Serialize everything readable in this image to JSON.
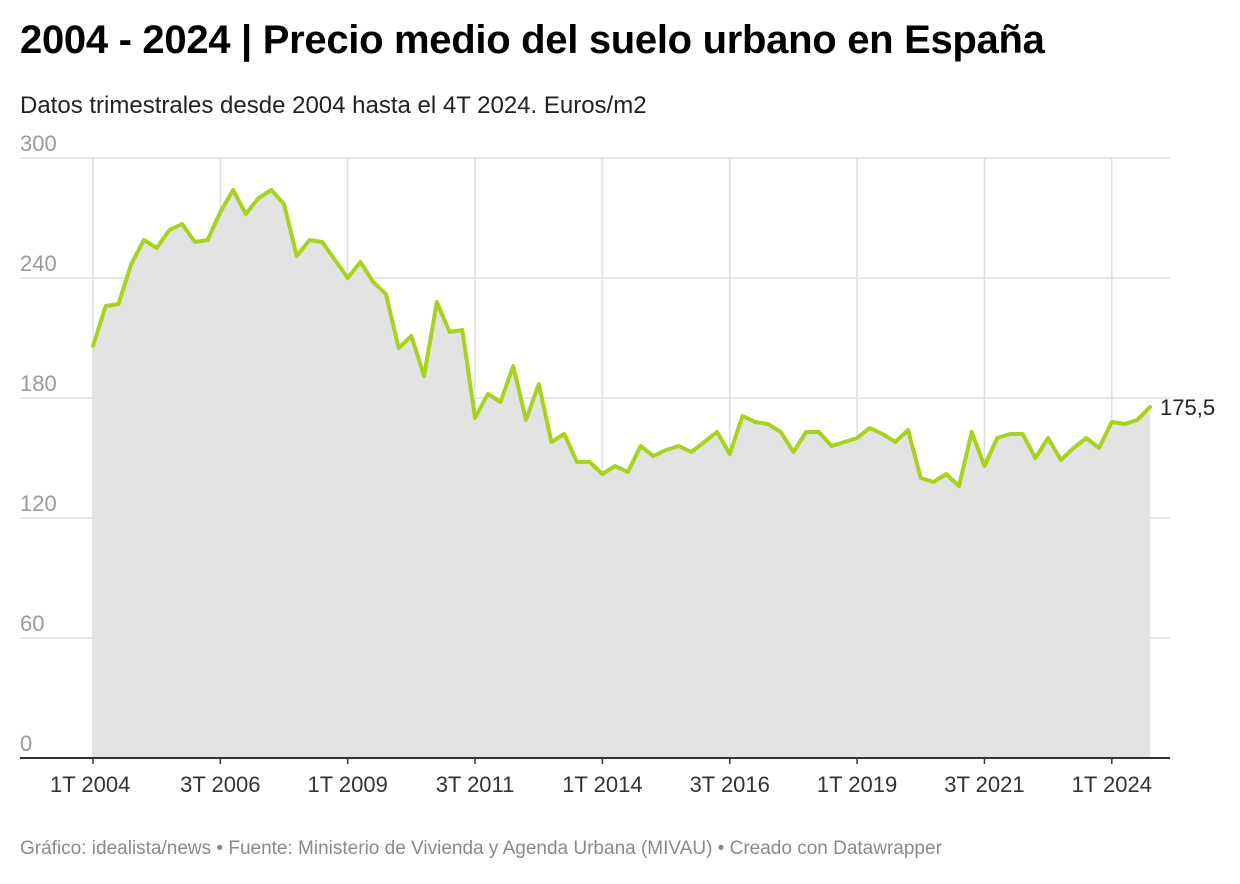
{
  "title": "2004 - 2024 | Precio medio del suelo urbano en España",
  "subtitle": "Datos trimestrales desde 2004 hasta el 4T 2024. Euros/m2",
  "footer": "Gráfico: idealista/news • Fuente: Ministerio de Vivienda y Agenda Urbana (MIVAU) • Creado con Datawrapper",
  "colors": {
    "line": "#a8d21f",
    "area": "#e3e3e3",
    "grid": "#dedede",
    "axis": "#333333"
  },
  "chart_data": {
    "type": "area",
    "title": "2004 - 2024 | Precio medio del suelo urbano en España",
    "ylabel": "Euros/m2",
    "ylim": [
      0,
      300
    ],
    "yticks": [
      0,
      60,
      120,
      180,
      240,
      300
    ],
    "xticks": [
      {
        "index": 0,
        "label": "1T 2004"
      },
      {
        "index": 10,
        "label": "3T 2006"
      },
      {
        "index": 20,
        "label": "1T 2009"
      },
      {
        "index": 30,
        "label": "3T 2011"
      },
      {
        "index": 40,
        "label": "1T 2014"
      },
      {
        "index": 50,
        "label": "3T 2016"
      },
      {
        "index": 60,
        "label": "1T 2019"
      },
      {
        "index": 70,
        "label": "3T 2021"
      },
      {
        "index": 80,
        "label": "1T 2024"
      }
    ],
    "last_label": "175,5",
    "series": [
      {
        "name": "Precio medio del suelo urbano",
        "start": "1T 2004",
        "end": "4T 2024",
        "values": [
          206,
          226,
          227,
          247,
          259,
          255,
          264,
          267,
          258,
          259,
          273,
          284,
          272,
          280,
          284,
          277,
          251,
          259,
          258,
          249,
          240,
          248,
          238,
          232,
          205,
          211,
          191,
          228,
          213,
          214,
          170,
          182,
          178,
          196,
          169,
          187,
          158,
          162,
          148,
          148,
          142,
          146,
          143,
          156,
          151,
          154,
          156,
          153,
          158,
          163,
          152,
          171,
          168,
          167,
          163,
          153,
          163,
          163,
          156,
          158,
          160,
          165,
          162,
          158,
          164,
          140,
          138,
          142,
          136,
          163,
          146,
          160,
          162,
          162,
          150,
          160,
          149,
          155,
          160,
          155,
          168,
          167,
          169,
          175.5
        ]
      }
    ]
  }
}
